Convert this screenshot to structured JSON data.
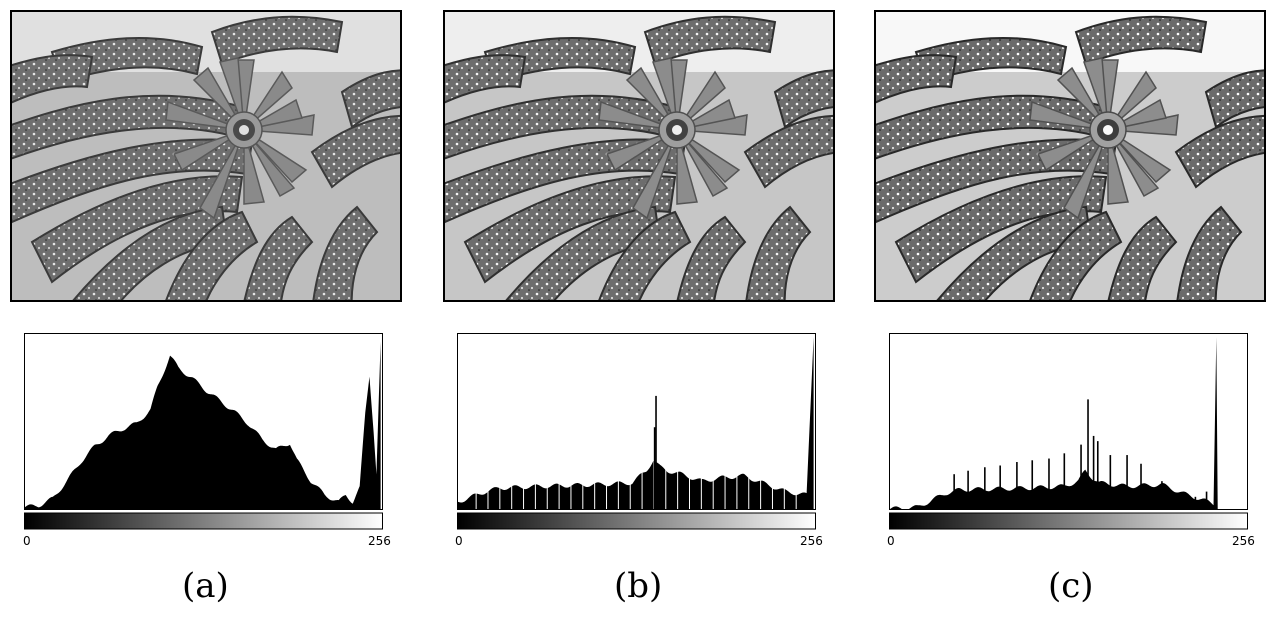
{
  "panels": [
    {
      "caption": "(a)"
    },
    {
      "caption": "(b)"
    },
    {
      "caption": "(c)"
    }
  ],
  "axis": {
    "min_label": "0",
    "max_label": "256"
  },
  "colors": {
    "bars": "#000000",
    "frame": "#000000",
    "background": "#ffffff"
  },
  "chart_data": [
    {
      "type": "bar",
      "xlabel": "",
      "ylabel": "",
      "xlim": [
        0,
        256
      ],
      "grid": false,
      "legend": "none",
      "profile": [
        [
          0,
          0.01
        ],
        [
          10,
          0.02
        ],
        [
          20,
          0.06
        ],
        [
          30,
          0.16
        ],
        [
          40,
          0.27
        ],
        [
          50,
          0.36
        ],
        [
          60,
          0.42
        ],
        [
          70,
          0.46
        ],
        [
          80,
          0.49
        ],
        [
          90,
          0.57
        ],
        [
          95,
          0.7
        ],
        [
          100,
          0.8
        ],
        [
          104,
          0.88
        ],
        [
          110,
          0.81
        ],
        [
          120,
          0.75
        ],
        [
          130,
          0.68
        ],
        [
          140,
          0.62
        ],
        [
          150,
          0.56
        ],
        [
          160,
          0.49
        ],
        [
          170,
          0.4
        ],
        [
          180,
          0.34
        ],
        [
          190,
          0.38
        ],
        [
          195,
          0.28
        ],
        [
          205,
          0.16
        ],
        [
          215,
          0.08
        ],
        [
          225,
          0.04
        ],
        [
          230,
          0.08
        ],
        [
          235,
          0.04
        ],
        [
          240,
          0.12
        ],
        [
          244,
          0.55
        ],
        [
          247,
          0.77
        ],
        [
          250,
          0.45
        ],
        [
          252,
          0.2
        ],
        [
          255,
          0.95
        ]
      ],
      "bar_lines": []
    },
    {
      "type": "bar",
      "xlabel": "",
      "ylabel": "",
      "xlim": [
        0,
        256
      ],
      "grid": false,
      "legend": "none",
      "profile": [
        [
          0,
          0.04
        ],
        [
          10,
          0.07
        ],
        [
          20,
          0.1
        ],
        [
          25,
          0.11
        ],
        [
          30,
          0.12
        ],
        [
          60,
          0.13
        ],
        [
          100,
          0.14
        ],
        [
          125,
          0.15
        ],
        [
          135,
          0.22
        ],
        [
          140,
          0.28
        ],
        [
          145,
          0.24
        ],
        [
          150,
          0.22
        ],
        [
          160,
          0.2
        ],
        [
          175,
          0.16
        ],
        [
          190,
          0.18
        ],
        [
          205,
          0.19
        ],
        [
          215,
          0.16
        ],
        [
          235,
          0.1
        ],
        [
          250,
          0.08
        ],
        [
          255,
          1.0
        ]
      ],
      "bar_lines": [
        [
          142,
          0.65
        ],
        [
          141,
          0.47
        ]
      ]
    },
    {
      "type": "bar",
      "xlabel": "",
      "ylabel": "",
      "xlim": [
        0,
        256
      ],
      "grid": false,
      "legend": "none",
      "profile": [
        [
          0,
          0.0
        ],
        [
          20,
          0.01
        ],
        [
          30,
          0.05
        ],
        [
          40,
          0.09
        ],
        [
          50,
          0.11
        ],
        [
          100,
          0.12
        ],
        [
          125,
          0.13
        ],
        [
          135,
          0.16
        ],
        [
          140,
          0.22
        ],
        [
          145,
          0.18
        ],
        [
          150,
          0.15
        ],
        [
          170,
          0.13
        ],
        [
          195,
          0.14
        ],
        [
          210,
          0.09
        ],
        [
          225,
          0.05
        ],
        [
          232,
          0.03
        ],
        [
          234,
          1.0
        ],
        [
          235,
          0.0
        ]
      ],
      "bar_lines": [
        [
          46,
          0.2
        ],
        [
          56,
          0.22
        ],
        [
          68,
          0.24
        ],
        [
          79,
          0.25
        ],
        [
          91,
          0.27
        ],
        [
          102,
          0.28
        ],
        [
          114,
          0.29
        ],
        [
          125,
          0.32
        ],
        [
          137,
          0.37
        ],
        [
          142,
          0.63
        ],
        [
          146,
          0.42
        ],
        [
          149,
          0.39
        ],
        [
          158,
          0.31
        ],
        [
          170,
          0.31
        ],
        [
          180,
          0.26
        ],
        [
          195,
          0.16
        ],
        [
          208,
          0.09
        ],
        [
          219,
          0.07
        ],
        [
          227,
          0.1
        ]
      ]
    }
  ]
}
